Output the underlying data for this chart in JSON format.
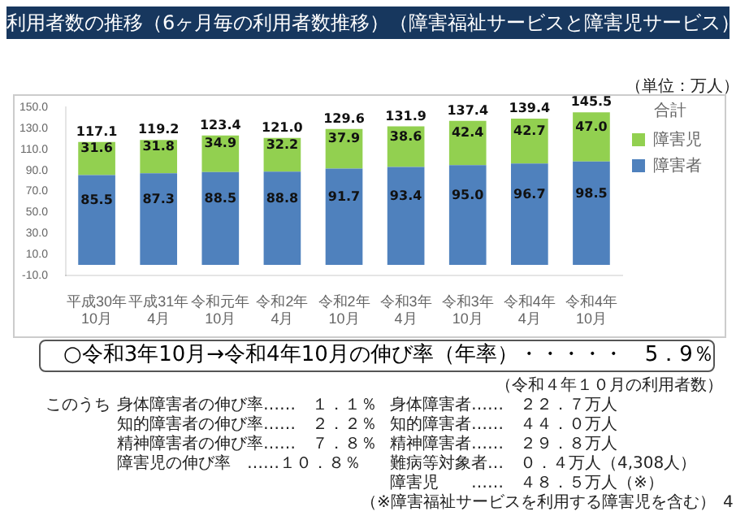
{
  "chart_data": {
    "type": "bar",
    "title": "利用者数の推移（6ヶ月毎の利用者数推移）（障害福祉サービスと障害児サービス）",
    "categories": [
      "平成30年10月",
      "平成31年4月",
      "令和元年10月",
      "令和2年4月",
      "令和2年10月",
      "令和3年4月",
      "令和3年10月",
      "令和4年4月",
      "令和4年10月"
    ],
    "series": [
      {
        "name": "障害者",
        "color": "#4f81bd",
        "values": [
          85.5,
          87.3,
          88.5,
          88.8,
          91.7,
          93.4,
          95.0,
          96.7,
          98.5
        ],
        "value_labels": [
          "85.5",
          "87.3",
          "88.5",
          "88.8",
          "91.7",
          "93.4",
          "95.0",
          "96.7",
          "98.5"
        ]
      },
      {
        "name": "障害児",
        "color": "#92d050",
        "values": [
          31.6,
          31.8,
          34.9,
          32.2,
          37.9,
          38.6,
          42.4,
          42.7,
          47.0
        ],
        "value_labels": [
          "31.6",
          "31.8",
          "34.9",
          "32.2",
          "37.9",
          "38.6",
          "42.4",
          "42.7",
          "47.0"
        ]
      }
    ],
    "stacked": true,
    "totals": [
      "117.1",
      "119.2",
      "123.4",
      "121.0",
      "129.6",
      "131.9",
      "137.4",
      "139.4",
      "145.5"
    ],
    "legend_title": "合計",
    "legend": "right",
    "grid": false,
    "ylim": [
      -10,
      150
    ],
    "yticks": [
      {
        "value": -10,
        "label": "-10.0"
      },
      {
        "value": 10,
        "label": "10.0"
      },
      {
        "value": 30,
        "label": "30.0"
      },
      {
        "value": 50,
        "label": "50.0"
      },
      {
        "value": 70,
        "label": "70.0"
      },
      {
        "value": 90,
        "label": "90.0"
      },
      {
        "value": 110,
        "label": "110.0"
      },
      {
        "value": 130,
        "label": "130.0"
      },
      {
        "value": 150,
        "label": "150.0"
      }
    ],
    "annotations": [
      "（単位：万人）",
      "○令和3年10月→令和4年10月の伸び率（年率）・・・・・　5．9％",
      "（令和４年１０月の利用者数）",
      "このうち",
      "身体障害者の伸び率……　１．１％",
      "知的障害者の伸び率……　２．２％",
      "精神障害者の伸び率……　７．８％",
      "障害児の伸び率　……１０．８％",
      "身体障害者……　２２．７万人",
      "知的障害者……　４４．０万人",
      "精神障害者……　２９．８万人",
      "難病等対象者…　０．４万人（4,308人）",
      "障害児　　……　４８．５万人（※）",
      "（※障害福祉サービスを利用する障害児を含む）",
      "4"
    ]
  }
}
